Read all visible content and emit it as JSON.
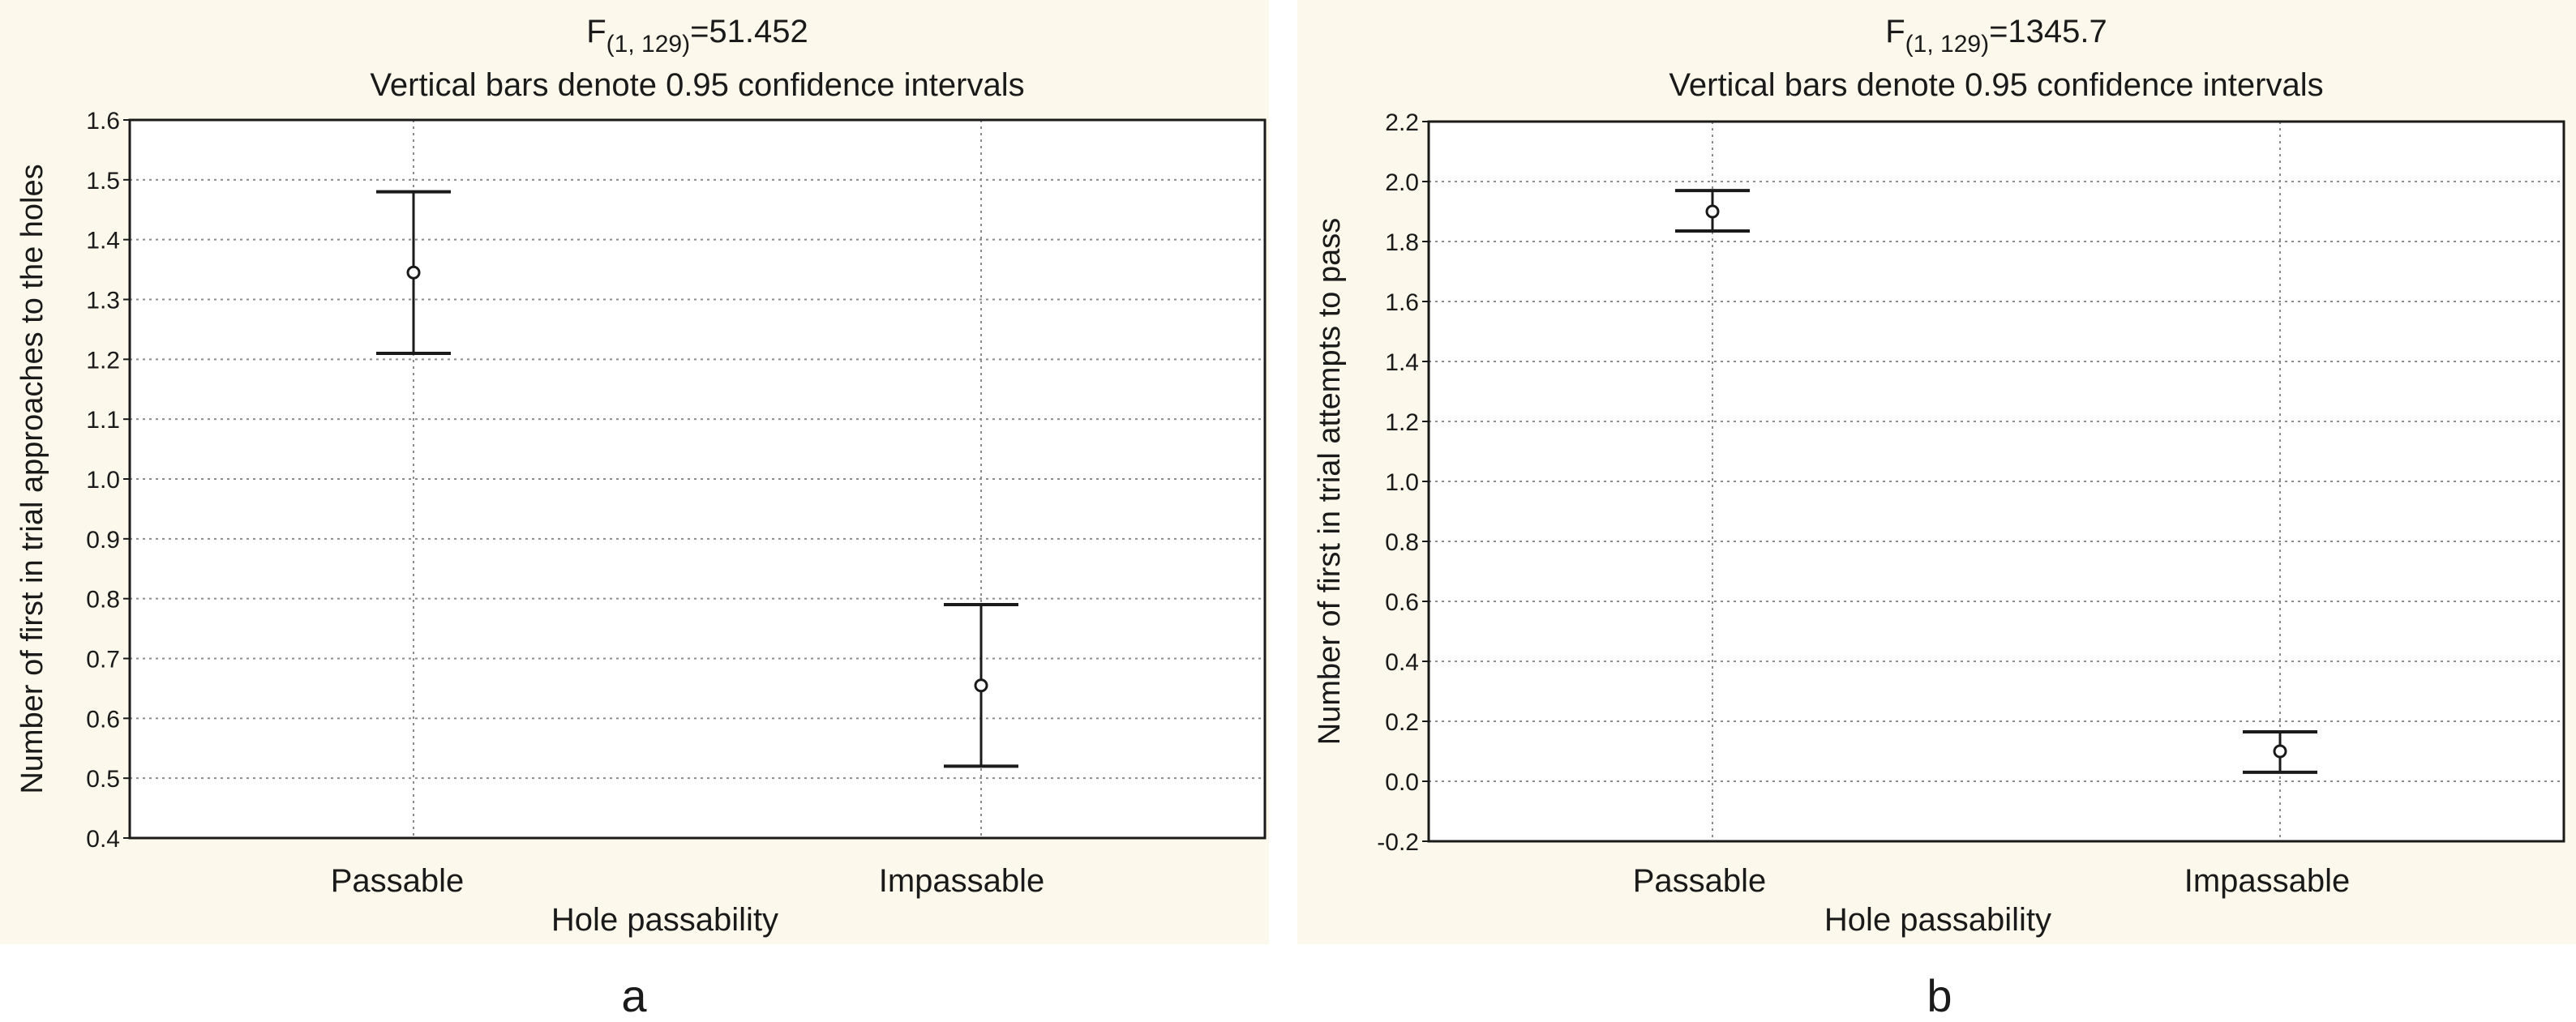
{
  "panels": [
    {
      "id": "a",
      "stat": {
        "prefix": "F",
        "subscript": "(1, 129)",
        "value": "=51.452"
      },
      "chart_data": {
        "type": "scatter",
        "title": "Vertical bars denote 0.95 confidence intervals",
        "xlabel": "Hole passability",
        "ylabel": "Number of first in trial approaches to the holes",
        "categories": [
          "Passable",
          "Impassable"
        ],
        "means": [
          1.345,
          0.655
        ],
        "ci_lower": [
          1.21,
          0.52
        ],
        "ci_upper": [
          1.48,
          0.79
        ],
        "ylim": [
          0.4,
          1.6
        ],
        "yticks": [
          0.4,
          0.5,
          0.6,
          0.7,
          0.8,
          0.9,
          1.0,
          1.1,
          1.2,
          1.3,
          1.4,
          1.5,
          1.6
        ],
        "ytick_labels": [
          "0.4",
          "0.5",
          "0.6",
          "0.7",
          "0.8",
          "0.9",
          "1.0",
          "1.1",
          "1.2",
          "1.3",
          "1.4",
          "1.5",
          "1.6"
        ],
        "grid": true
      },
      "caption": "a"
    },
    {
      "id": "b",
      "stat": {
        "prefix": "F",
        "subscript": "(1, 129)",
        "value": "=1345.7"
      },
      "chart_data": {
        "type": "scatter",
        "title": "Vertical bars denote 0.95 confidence intervals",
        "xlabel": "Hole passability",
        "ylabel": "Number of first in trial attempts to pass",
        "categories": [
          "Passable",
          "Impassable"
        ],
        "means": [
          1.9,
          0.1
        ],
        "ci_lower": [
          1.835,
          0.03
        ],
        "ci_upper": [
          1.97,
          0.165
        ],
        "ylim": [
          -0.2,
          2.2
        ],
        "yticks": [
          -0.2,
          0.0,
          0.2,
          0.4,
          0.6,
          0.8,
          1.0,
          1.2,
          1.4,
          1.6,
          1.8,
          2.0,
          2.2
        ],
        "ytick_labels": [
          "-0.2",
          "0.0",
          "0.2",
          "0.4",
          "0.6",
          "0.8",
          "1.0",
          "1.2",
          "1.4",
          "1.6",
          "1.8",
          "2.0",
          "2.2"
        ],
        "grid": true
      },
      "caption": "b"
    }
  ],
  "colors": {
    "panel_bg": "#fdf8ec",
    "plot_bg": "#ffffff",
    "ink": "#1a1a1a",
    "grid": "#8c8c8c"
  }
}
